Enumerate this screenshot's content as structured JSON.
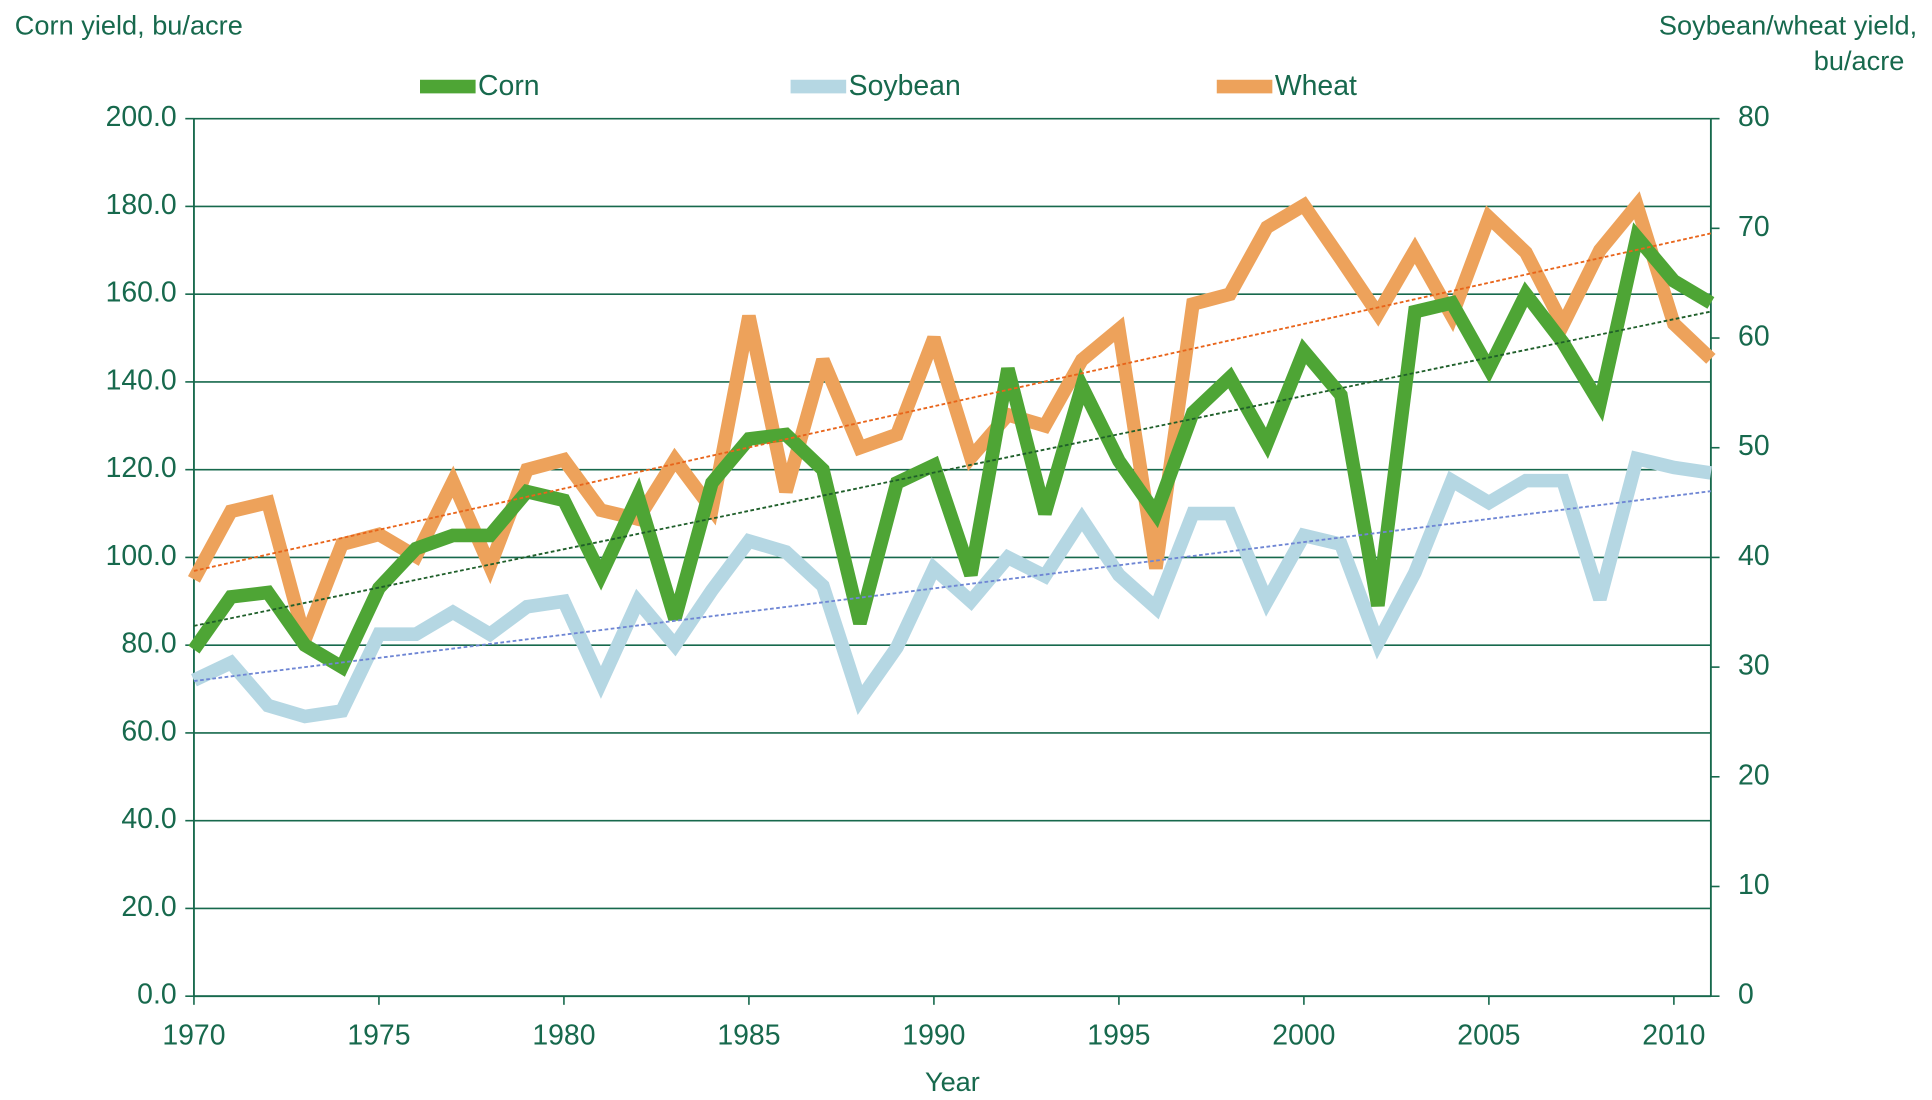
{
  "chart_data": {
    "type": "line",
    "ylabel": "Corn yield, bu/acre",
    "y2label": [
      "Soybean/wheat yield,",
      "bu/acre"
    ],
    "xlabel": "Year",
    "x": [
      1970,
      1971,
      1972,
      1973,
      1974,
      1975,
      1976,
      1977,
      1978,
      1979,
      1980,
      1981,
      1982,
      1983,
      1984,
      1985,
      1986,
      1987,
      1988,
      1989,
      1990,
      1991,
      1992,
      1993,
      1994,
      1995,
      1996,
      1997,
      1998,
      1999,
      2000,
      2001,
      2002,
      2003,
      2004,
      2005,
      2006,
      2007,
      2008,
      2009,
      2010,
      2011
    ],
    "xlim": [
      1970,
      2011
    ],
    "xticks": [
      1970,
      1975,
      1980,
      1985,
      1990,
      1995,
      2000,
      2005,
      2010
    ],
    "ylim": [
      0,
      200
    ],
    "yticks": [
      {
        "value": 0,
        "label": "0.0"
      },
      {
        "value": 20,
        "label": "20.0"
      },
      {
        "value": 40,
        "label": "40.0"
      },
      {
        "value": 60,
        "label": "60.0"
      },
      {
        "value": 80,
        "label": "80.0"
      },
      {
        "value": 100,
        "label": "100.0"
      },
      {
        "value": 120,
        "label": "120.0"
      },
      {
        "value": 140,
        "label": "140.0"
      },
      {
        "value": 160,
        "label": "160.0"
      },
      {
        "value": 180,
        "label": "180.0"
      },
      {
        "value": 200,
        "label": "200.0"
      }
    ],
    "y2lim": [
      0,
      80
    ],
    "y2ticks": [
      0,
      10,
      20,
      30,
      40,
      50,
      60,
      70,
      80
    ],
    "grid": true,
    "legend": "top",
    "series": [
      {
        "name": "Corn",
        "color": "#4ea535",
        "trend_color": "#1f5f2a",
        "trendline": true,
        "values": [
          79,
          91,
          92,
          80,
          75,
          93,
          102,
          105,
          105,
          115,
          113,
          96,
          114,
          86,
          117,
          127,
          128,
          120,
          85,
          117,
          121,
          96,
          143,
          110,
          139,
          122,
          110,
          133,
          141,
          126,
          147,
          137,
          89,
          156,
          158,
          143,
          160,
          149,
          135,
          173,
          163,
          158
        ]
      },
      {
        "name": "Soybean",
        "color": "#b5d7e3",
        "trend_color": "#6f86d4",
        "trendline": true,
        "axis": "y2",
        "values": [
          28.8,
          30.4,
          26.5,
          25.5,
          26,
          33,
          33,
          35,
          33,
          35.5,
          36,
          28.6,
          36,
          32,
          37,
          41.5,
          40.5,
          37.4,
          27,
          31.8,
          39,
          36,
          40,
          38.3,
          43.5,
          38.4,
          35.4,
          44,
          44,
          36,
          42,
          41.2,
          32.2,
          38.6,
          47,
          45,
          47,
          47,
          36.2,
          49,
          48.2,
          47.7
        ]
      },
      {
        "name": "Wheat",
        "color": "#eda25b",
        "trend_color": "#e8641a",
        "trendline": true,
        "axis": "y2",
        "values": [
          38,
          44.2,
          45,
          32.5,
          41.2,
          42.1,
          40.1,
          46.9,
          39.2,
          48,
          48.9,
          44.3,
          43.5,
          48.9,
          44.4,
          62,
          46,
          58,
          50,
          51.2,
          60,
          49.1,
          53,
          52,
          58,
          60.8,
          39,
          63.1,
          64,
          70.1,
          72.1,
          67.2,
          62.2,
          68,
          62,
          71,
          67.8,
          61.2,
          68,
          72.1,
          61.3,
          58.1
        ]
      }
    ]
  }
}
